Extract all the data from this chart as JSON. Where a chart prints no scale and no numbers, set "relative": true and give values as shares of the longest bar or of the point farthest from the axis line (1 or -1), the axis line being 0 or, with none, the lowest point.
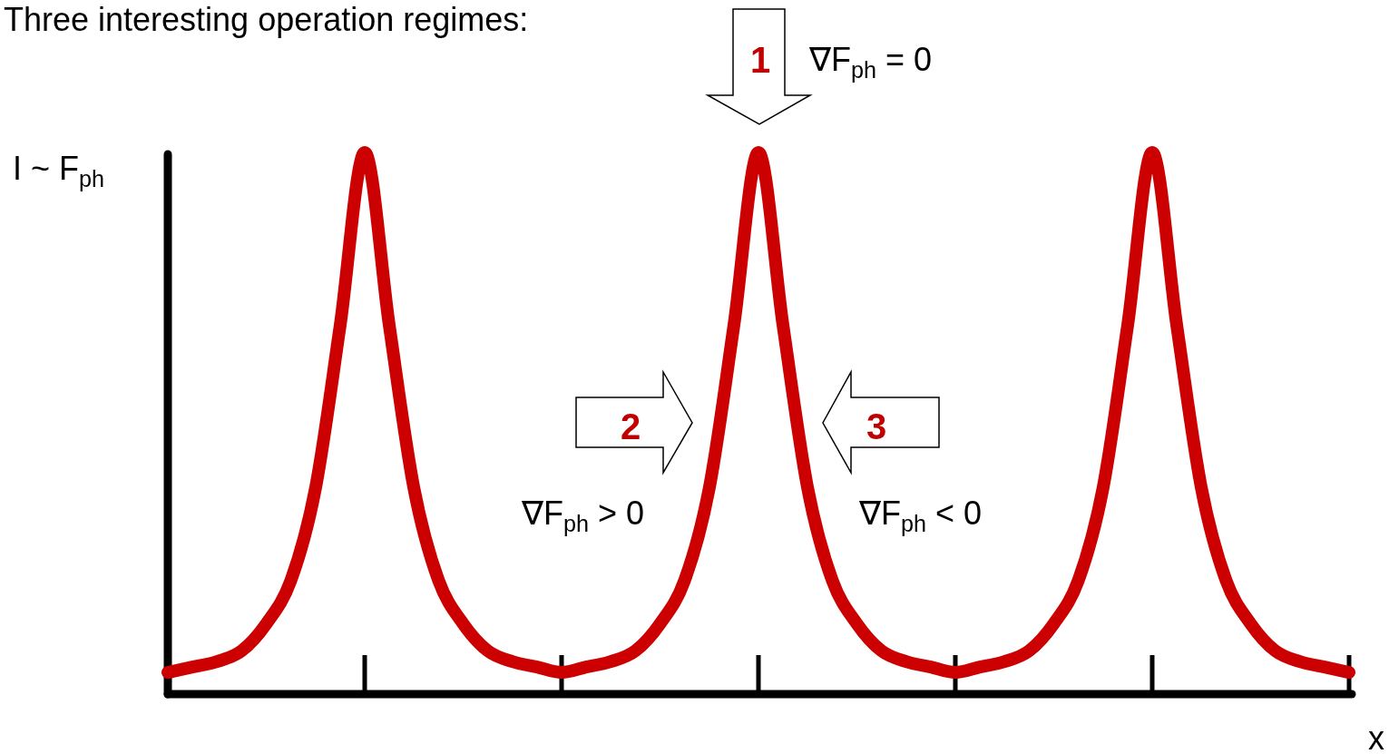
{
  "chart_data": {
    "type": "line",
    "relative": true,
    "title": "Three interesting operation regimes:",
    "ylabel": "I ~ F$_{ph}$",
    "xlabel": "x",
    "categories": [
      null,
      null,
      null,
      null,
      null,
      null,
      null,
      null,
      null,
      null,
      null,
      null,
      null,
      null,
      null,
      null,
      null,
      null,
      null,
      null,
      null,
      null,
      null,
      null,
      null,
      null,
      null,
      null,
      null,
      null,
      null,
      null,
      null,
      null,
      null,
      null,
      null,
      null,
      null,
      null,
      null,
      null,
      null,
      null,
      null,
      null,
      null,
      null,
      null
    ],
    "series": [
      {
        "color": "#cc0000",
        "values": [
          0.04,
          0.05,
          0.06,
          0.08,
          0.13,
          0.21,
          0.38,
          0.68,
          1.0,
          0.68,
          0.38,
          0.21,
          0.13,
          0.08,
          0.06,
          0.05,
          0.04,
          0.05,
          0.06,
          0.08,
          0.13,
          0.21,
          0.38,
          0.68,
          1.0,
          0.68,
          0.38,
          0.21,
          0.13,
          0.08,
          0.06,
          0.05,
          0.04,
          0.05,
          0.06,
          0.08,
          0.13,
          0.21,
          0.38,
          0.68,
          1.0,
          0.68,
          0.38,
          0.21,
          0.13,
          0.08,
          0.06,
          0.05,
          0.04
        ]
      }
    ],
    "annotations": [
      "1",
      "∇F$_{ph}$ = 0",
      "2",
      "∇F$_{ph}$ > 0",
      "3",
      "∇F$_{ph}$ < 0"
    ],
    "marker": "none",
    "line_style": "solid"
  }
}
